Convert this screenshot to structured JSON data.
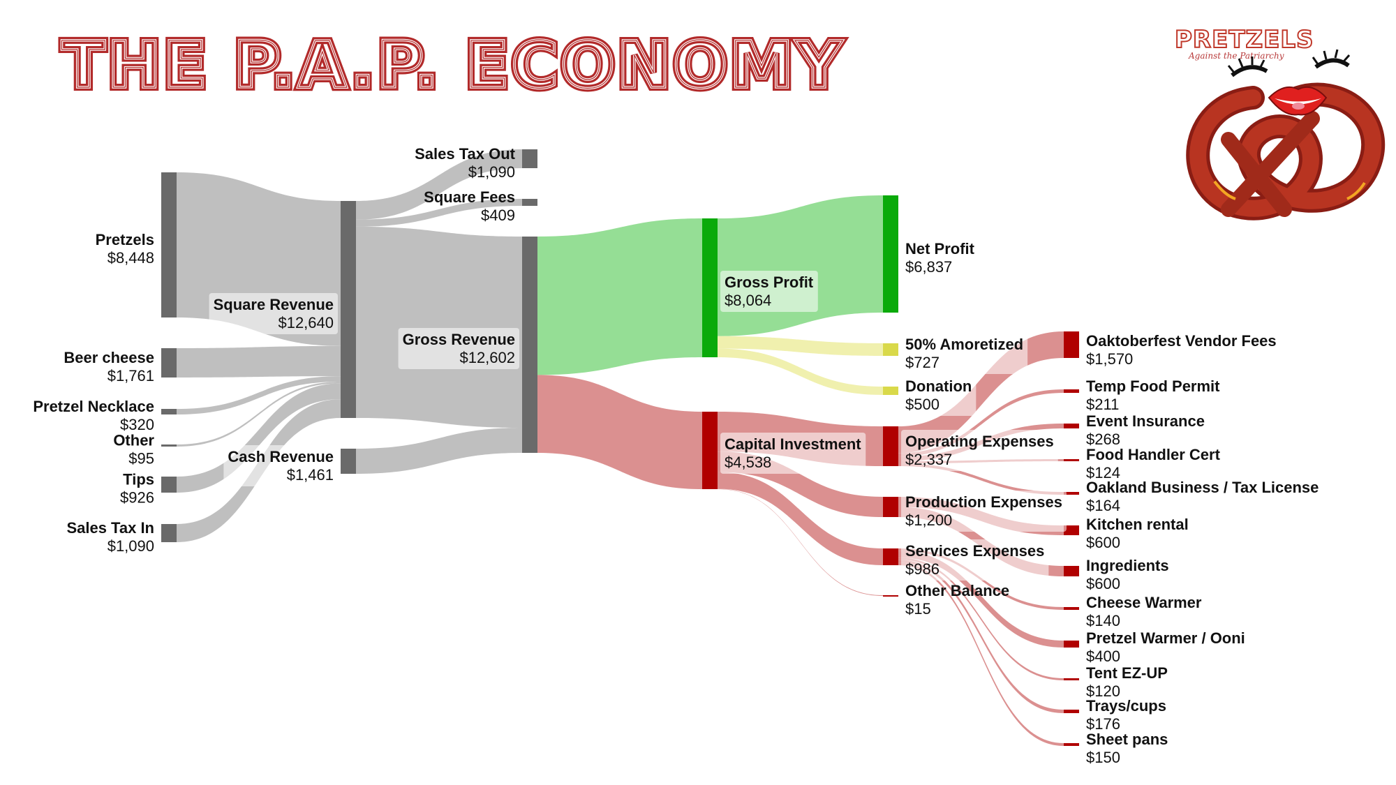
{
  "title": "THE P.A.P. ECONOMY",
  "logo": {
    "word": "PRETZELS",
    "tagline": "Against the Patriarchy",
    "icons": [
      "pretzel-icon",
      "lips-icon",
      "eyelash-icon"
    ]
  },
  "colors": {
    "title": "#b22a2a",
    "node_gray": "#6a6a6a",
    "node_green": "#0aaa0a",
    "node_yellow": "#d9d94a",
    "node_red": "#b00000",
    "link_gray": "#bcbcbc",
    "link_green": "#8fdc8f",
    "link_yellow": "#efefaa",
    "link_red": "#d98a8a"
  },
  "nodes": [
    {
      "id": "pretzels",
      "name": "Pretzels",
      "value": "$8,448",
      "color": "gray"
    },
    {
      "id": "beer_cheese",
      "name": "Beer cheese",
      "value": "$1,761",
      "color": "gray"
    },
    {
      "id": "pretzel_necklace",
      "name": "Pretzel Necklace",
      "value": "$320",
      "color": "gray"
    },
    {
      "id": "other",
      "name": "Other",
      "value": "$95",
      "color": "gray"
    },
    {
      "id": "tips",
      "name": "Tips",
      "value": "$926",
      "color": "gray"
    },
    {
      "id": "sales_tax_in",
      "name": "Sales Tax In",
      "value": "$1,090",
      "color": "gray"
    },
    {
      "id": "square_revenue",
      "name": "Square Revenue",
      "value": "$12,640",
      "color": "gray"
    },
    {
      "id": "cash_revenue",
      "name": "Cash Revenue",
      "value": "$1,461",
      "color": "gray"
    },
    {
      "id": "sales_tax_out",
      "name": "Sales Tax Out",
      "value": "$1,090",
      "color": "gray"
    },
    {
      "id": "square_fees",
      "name": "Square Fees",
      "value": "$409",
      "color": "gray"
    },
    {
      "id": "gross_revenue",
      "name": "Gross Revenue",
      "value": "$12,602",
      "color": "gray"
    },
    {
      "id": "gross_profit",
      "name": "Gross Profit",
      "value": "$8,064",
      "color": "green"
    },
    {
      "id": "capital_investment",
      "name": "Capital Investment",
      "value": "$4,538",
      "color": "red"
    },
    {
      "id": "net_profit",
      "name": "Net Profit",
      "value": "$6,837",
      "color": "green"
    },
    {
      "id": "amortized",
      "name": "50% Amoretized",
      "value": "$727",
      "color": "yellow"
    },
    {
      "id": "donation",
      "name": "Donation",
      "value": "$500",
      "color": "yellow"
    },
    {
      "id": "operating_expenses",
      "name": "Operating Expenses",
      "value": "$2,337",
      "color": "red"
    },
    {
      "id": "production_expenses",
      "name": "Production Expenses",
      "value": "$1,200",
      "color": "red"
    },
    {
      "id": "services_expenses",
      "name": "Services Expenses",
      "value": "$986",
      "color": "red"
    },
    {
      "id": "other_balance",
      "name": "Other Balance",
      "value": "$15",
      "color": "red"
    },
    {
      "id": "oaktoberfest",
      "name": "Oaktoberfest Vendor Fees",
      "value": "$1,570",
      "color": "red"
    },
    {
      "id": "temp_food_permit",
      "name": "Temp Food Permit",
      "value": "$211",
      "color": "red"
    },
    {
      "id": "event_insurance",
      "name": "Event Insurance",
      "value": "$268",
      "color": "red"
    },
    {
      "id": "food_handler_cert",
      "name": "Food Handler Cert",
      "value": "$124",
      "color": "red"
    },
    {
      "id": "oakland_license",
      "name": "Oakland Business / Tax License",
      "value": "$164",
      "color": "red"
    },
    {
      "id": "kitchen_rental",
      "name": "Kitchen rental",
      "value": "$600",
      "color": "red"
    },
    {
      "id": "ingredients",
      "name": "Ingredients",
      "value": "$600",
      "color": "red"
    },
    {
      "id": "cheese_warmer",
      "name": "Cheese Warmer",
      "value": "$140",
      "color": "red"
    },
    {
      "id": "pretzel_warmer",
      "name": "Pretzel Warmer / Ooni",
      "value": "$400",
      "color": "red"
    },
    {
      "id": "tent",
      "name": "Tent EZ-UP",
      "value": "$120",
      "color": "red"
    },
    {
      "id": "trays_cups",
      "name": "Trays/cups",
      "value": "$176",
      "color": "red"
    },
    {
      "id": "sheet_pans",
      "name": "Sheet pans",
      "value": "$150",
      "color": "red"
    }
  ],
  "links": [
    {
      "from": "pretzels",
      "to": "square_revenue",
      "value": 8448,
      "color": "gray"
    },
    {
      "from": "beer_cheese",
      "to": "square_revenue",
      "value": 1761,
      "color": "gray"
    },
    {
      "from": "pretzel_necklace",
      "to": "square_revenue",
      "value": 320,
      "color": "gray"
    },
    {
      "from": "other",
      "to": "square_revenue",
      "value": 95,
      "color": "gray"
    },
    {
      "from": "tips",
      "to": "square_revenue",
      "value": 926,
      "color": "gray"
    },
    {
      "from": "sales_tax_in",
      "to": "square_revenue",
      "value": 1090,
      "color": "gray"
    },
    {
      "from": "square_revenue",
      "to": "sales_tax_out",
      "value": 1090,
      "color": "gray"
    },
    {
      "from": "square_revenue",
      "to": "square_fees",
      "value": 409,
      "color": "gray"
    },
    {
      "from": "square_revenue",
      "to": "gross_revenue",
      "value": 11141,
      "color": "gray"
    },
    {
      "from": "cash_revenue",
      "to": "gross_revenue",
      "value": 1461,
      "color": "gray"
    },
    {
      "from": "gross_revenue",
      "to": "gross_profit",
      "value": 8064,
      "color": "green"
    },
    {
      "from": "gross_revenue",
      "to": "capital_investment",
      "value": 4538,
      "color": "red"
    },
    {
      "from": "gross_profit",
      "to": "net_profit",
      "value": 6837,
      "color": "green"
    },
    {
      "from": "gross_profit",
      "to": "amortized",
      "value": 727,
      "color": "yellow"
    },
    {
      "from": "gross_profit",
      "to": "donation",
      "value": 500,
      "color": "yellow"
    },
    {
      "from": "capital_investment",
      "to": "operating_expenses",
      "value": 2337,
      "color": "red"
    },
    {
      "from": "capital_investment",
      "to": "production_expenses",
      "value": 1200,
      "color": "red"
    },
    {
      "from": "capital_investment",
      "to": "services_expenses",
      "value": 986,
      "color": "red"
    },
    {
      "from": "capital_investment",
      "to": "other_balance",
      "value": 15,
      "color": "red"
    },
    {
      "from": "operating_expenses",
      "to": "oaktoberfest",
      "value": 1570,
      "color": "red"
    },
    {
      "from": "operating_expenses",
      "to": "temp_food_permit",
      "value": 211,
      "color": "red"
    },
    {
      "from": "operating_expenses",
      "to": "event_insurance",
      "value": 268,
      "color": "red"
    },
    {
      "from": "operating_expenses",
      "to": "food_handler_cert",
      "value": 124,
      "color": "red"
    },
    {
      "from": "operating_expenses",
      "to": "oakland_license",
      "value": 164,
      "color": "red"
    },
    {
      "from": "production_expenses",
      "to": "kitchen_rental",
      "value": 600,
      "color": "red"
    },
    {
      "from": "production_expenses",
      "to": "ingredients",
      "value": 600,
      "color": "red"
    },
    {
      "from": "services_expenses",
      "to": "cheese_warmer",
      "value": 140,
      "color": "red"
    },
    {
      "from": "services_expenses",
      "to": "pretzel_warmer",
      "value": 400,
      "color": "red"
    },
    {
      "from": "services_expenses",
      "to": "tent",
      "value": 120,
      "color": "red"
    },
    {
      "from": "services_expenses",
      "to": "trays_cups",
      "value": 176,
      "color": "red"
    },
    {
      "from": "services_expenses",
      "to": "sheet_pans",
      "value": 150,
      "color": "red"
    }
  ]
}
